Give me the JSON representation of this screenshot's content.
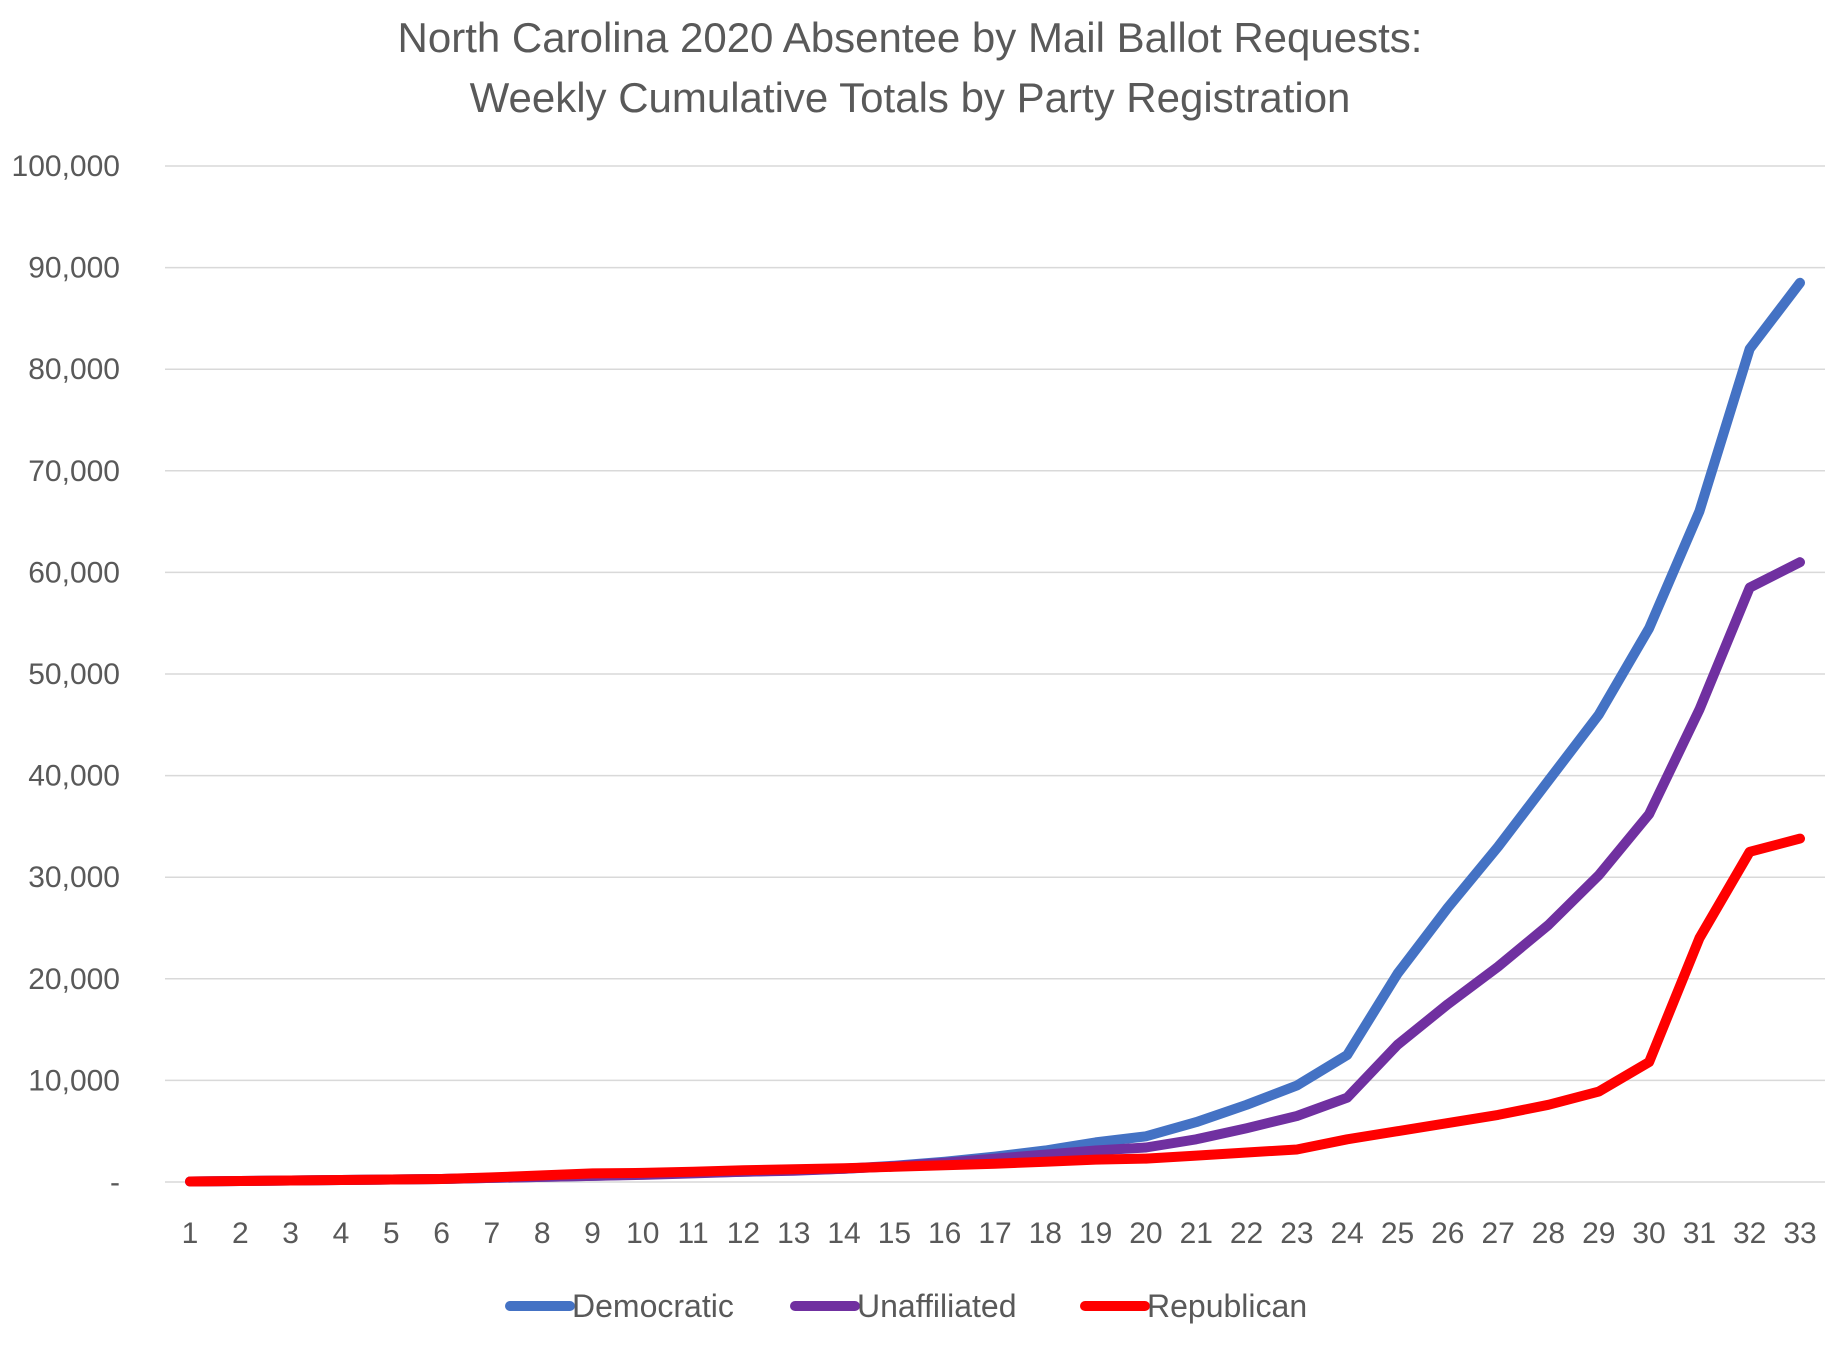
{
  "chart_data": {
    "type": "line",
    "title_lines": [
      "North Carolina 2020 Absentee by Mail Ballot Requests:",
      "Weekly Cumulative Totals by Party Registration"
    ],
    "xlabel": "",
    "ylabel": "",
    "categories": [
      "1",
      "2",
      "3",
      "4",
      "5",
      "6",
      "7",
      "8",
      "9",
      "10",
      "11",
      "12",
      "13",
      "14",
      "15",
      "16",
      "17",
      "18",
      "19",
      "20",
      "21",
      "22",
      "23",
      "24",
      "25",
      "26",
      "27",
      "28",
      "29",
      "30",
      "31",
      "32",
      "33"
    ],
    "y_tick_labels": [
      "-",
      "10,000",
      "20,000",
      "30,000",
      "40,000",
      "50,000",
      "60,000",
      "70,000",
      "80,000",
      "90,000",
      "100,000"
    ],
    "ylim": [
      0,
      100000
    ],
    "grid": true,
    "legend_position": "bottom",
    "series": [
      {
        "name": "Democratic",
        "color": "#4472C4",
        "values": [
          50,
          100,
          150,
          200,
          250,
          300,
          400,
          500,
          600,
          750,
          900,
          1000,
          1150,
          1300,
          1600,
          2000,
          2500,
          3100,
          3900,
          4500,
          5900,
          7600,
          9500,
          12500,
          20500,
          27000,
          33000,
          39500,
          46000,
          54500,
          66000,
          82000,
          88500
        ]
      },
      {
        "name": "Unaffiliated",
        "color": "#7030A0",
        "values": [
          50,
          100,
          150,
          200,
          250,
          300,
          400,
          500,
          600,
          700,
          850,
          1000,
          1100,
          1300,
          1550,
          1900,
          2300,
          2700,
          3100,
          3400,
          4200,
          5300,
          6500,
          8300,
          13500,
          17500,
          21200,
          25300,
          30200,
          36200,
          46500,
          58500,
          61000
        ]
      },
      {
        "name": "Republican",
        "color": "#FF0000",
        "values": [
          50,
          100,
          150,
          200,
          250,
          300,
          450,
          650,
          850,
          900,
          1000,
          1150,
          1250,
          1350,
          1500,
          1650,
          1800,
          2000,
          2200,
          2300,
          2600,
          2900,
          3200,
          4200,
          5000,
          5800,
          6600,
          7600,
          8900,
          11800,
          24000,
          32500,
          33800
        ]
      }
    ]
  }
}
